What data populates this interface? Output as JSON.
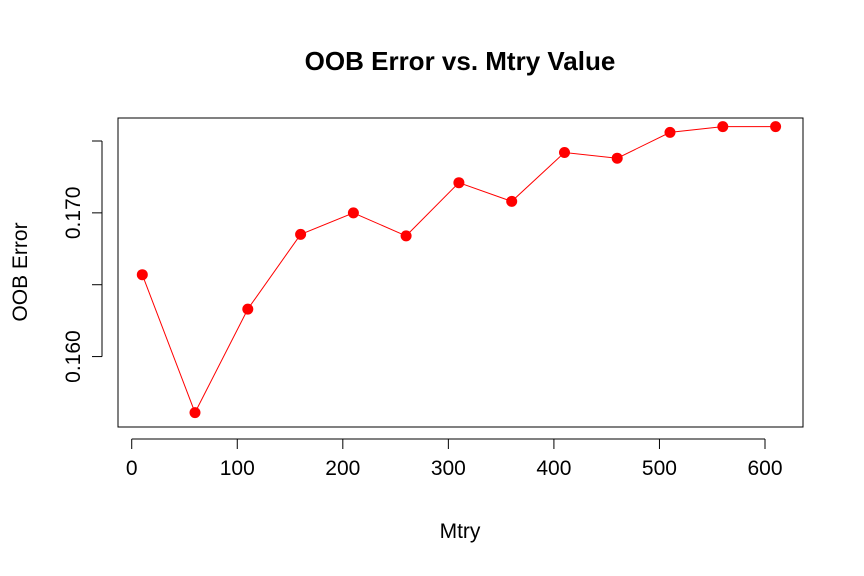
{
  "chart_data": {
    "type": "line",
    "title": "OOB Error vs. Mtry Value",
    "xlabel": "Mtry",
    "ylabel": "OOB Error",
    "x": [
      10,
      60,
      110,
      160,
      210,
      260,
      310,
      360,
      410,
      460,
      510,
      560,
      610
    ],
    "y": [
      0.1657,
      0.1561,
      0.1633,
      0.1685,
      0.17,
      0.1684,
      0.1721,
      0.1708,
      0.1742,
      0.1738,
      0.1756,
      0.176,
      0.176
    ],
    "xlim": [
      -13,
      636
    ],
    "ylim": [
      0.1551,
      0.1766
    ],
    "xticks": [
      0,
      100,
      200,
      300,
      400,
      500,
      600
    ],
    "yticks": [
      0.16,
      0.165,
      0.17,
      0.175
    ],
    "ytick_labels": [
      "0.160",
      "",
      "0.170",
      ""
    ],
    "grid": false,
    "legend": "none",
    "line_color": "#ff0000",
    "point_color": "#ff0000",
    "marker": "filled-circle"
  }
}
